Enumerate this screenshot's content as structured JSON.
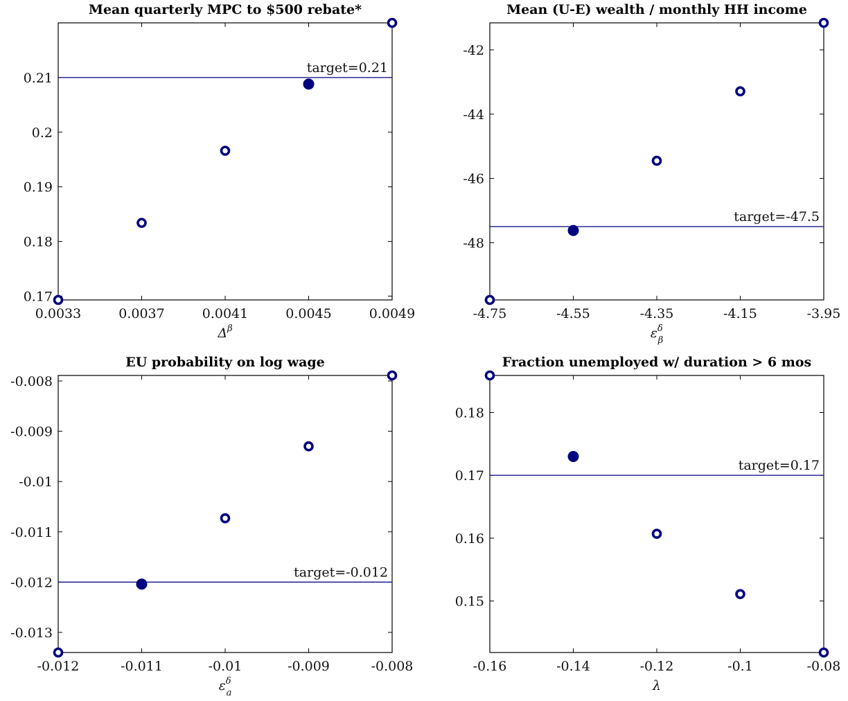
{
  "colors": {
    "marker": "#000080",
    "target_line": "#1a1a8c",
    "frame": "#000000"
  },
  "chart_data": [
    {
      "type": "scatter",
      "title": "Mean quarterly MPC to $500 rebate*",
      "xlabel": "Δ^β",
      "ylabel": "",
      "x": [
        0.0033,
        0.0037,
        0.0041,
        0.0045,
        0.0049
      ],
      "y": [
        0.1693,
        0.1834,
        0.1966,
        0.2088,
        0.22
      ],
      "selected_index": 3,
      "xlim": [
        0.0033,
        0.0049
      ],
      "ylim": [
        0.1693,
        0.22
      ],
      "xticks": [
        0.0033,
        0.0037,
        0.0041,
        0.0045,
        0.0049
      ],
      "xtick_labels": [
        "0.0033",
        "0.0037",
        "0.0041",
        "0.0045",
        "0.0049"
      ],
      "yticks": [
        0.17,
        0.18,
        0.19,
        0.2,
        0.21
      ],
      "ytick_labels": [
        "0.17",
        "0.18",
        "0.19",
        "0.2",
        "0.21"
      ],
      "target": 0.21,
      "target_label": "target=0.21"
    },
    {
      "type": "scatter",
      "title": "Mean (U-E) wealth / monthly HH income",
      "xlabel": "ε^δ_β",
      "ylabel": "",
      "x": [
        -4.75,
        -4.55,
        -4.35,
        -4.15,
        -3.95
      ],
      "y": [
        -49.78,
        -47.62,
        -45.45,
        -43.29,
        -41.16
      ],
      "selected_index": 1,
      "xlim": [
        -4.75,
        -3.95
      ],
      "ylim": [
        -49.78,
        -41.16
      ],
      "xticks": [
        -4.75,
        -4.55,
        -4.35,
        -4.15,
        -3.95
      ],
      "xtick_labels": [
        "-4.75",
        "-4.55",
        "-4.35",
        "-4.15",
        "-3.95"
      ],
      "yticks": [
        -48,
        -46,
        -44,
        -42
      ],
      "ytick_labels": [
        "-48",
        "-46",
        "-44",
        "-42"
      ],
      "target": -47.5,
      "target_label": "target=-47.5"
    },
    {
      "type": "scatter",
      "title": "EU probability on log wage",
      "xlabel": "ε^δ_a",
      "ylabel": "",
      "x": [
        -0.012,
        -0.011,
        -0.01,
        -0.009,
        -0.008
      ],
      "y": [
        -0.0134,
        -0.01204,
        -0.01073,
        -0.0093,
        -0.00789
      ],
      "selected_index": 1,
      "xlim": [
        -0.012,
        -0.008
      ],
      "ylim": [
        -0.0134,
        -0.00789
      ],
      "xticks": [
        -0.012,
        -0.011,
        -0.01,
        -0.009,
        -0.008
      ],
      "xtick_labels": [
        "-0.012",
        "-0.011",
        "-0.01",
        "-0.009",
        "-0.008"
      ],
      "yticks": [
        -0.013,
        -0.012,
        -0.011,
        -0.01,
        -0.009,
        -0.008
      ],
      "ytick_labels": [
        "-0.013",
        "-0.012",
        "-0.011",
        "-0.01",
        "-0.009",
        "-0.008"
      ],
      "target": -0.012,
      "target_label": "target=-0.012"
    },
    {
      "type": "scatter",
      "title": "Fraction unemployed w/ duration > 6 mos",
      "xlabel": "λ",
      "ylabel": "",
      "x": [
        -0.16,
        -0.14,
        -0.12,
        -0.1,
        -0.08
      ],
      "y": [
        0.1859,
        0.173,
        0.1607,
        0.1511,
        0.1418
      ],
      "selected_index": 1,
      "xlim": [
        -0.16,
        -0.08
      ],
      "ylim": [
        0.1418,
        0.1859
      ],
      "xticks": [
        -0.16,
        -0.14,
        -0.12,
        -0.1,
        -0.08
      ],
      "xtick_labels": [
        "-0.16",
        "-0.14",
        "-0.12",
        "-0.1",
        "-0.08"
      ],
      "yticks": [
        0.15,
        0.16,
        0.17,
        0.18
      ],
      "ytick_labels": [
        "0.15",
        "0.16",
        "0.17",
        "0.18"
      ],
      "target": 0.17,
      "target_label": "target=0.17"
    }
  ]
}
